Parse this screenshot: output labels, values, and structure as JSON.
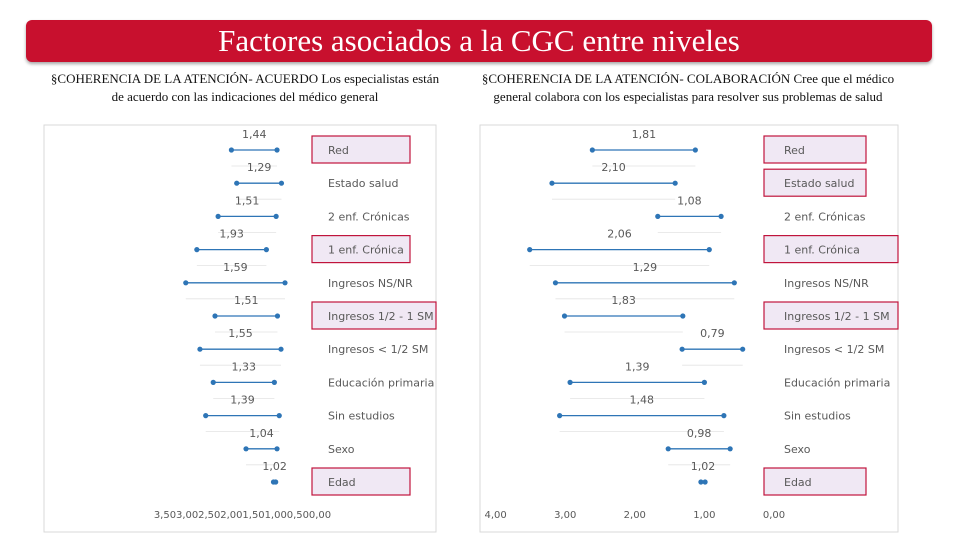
{
  "title": "Factores asociados a la CGC entre niveles",
  "left_header": "§COHERENCIA DE LA ATENCIÓN- ACUERDO Los especialistas están de acuerdo con las indicaciones del médico general",
  "right_header": "§COHERENCIA DE LA ATENCIÓN- COLABORACIÓN Cree que el médico general colabora con los especialistas para resolver sus problemas de salud",
  "colors": {
    "title_bg": "#c8102e",
    "line": "#2e75b6",
    "highlight_border": "#c0143c",
    "highlight_fill": "#f0e8f4",
    "label": "#595959"
  },
  "chart_data": [
    {
      "type": "dumbbell",
      "xlim": [
        0,
        3.5
      ],
      "x_reversed": true,
      "x_ticks": [
        "3,50",
        "3,00",
        "2,50",
        "2,00",
        "1,50",
        "1,00",
        "0,50",
        "0,00"
      ],
      "categories": [
        "Red",
        "Estado salud",
        "2 enf. Crónicas",
        "1 enf. Crónica",
        "Ingresos NS/NR",
        "Ingresos 1/2 - 1 SM",
        "Ingresos < 1/2 SM",
        "Educación primaria",
        "Sin estudios",
        "Sexo",
        "Edad"
      ],
      "highlighted": [
        true,
        false,
        false,
        true,
        false,
        true,
        false,
        false,
        false,
        false,
        true
      ],
      "labels": [
        "1,44",
        "1,29",
        "1,51",
        "1,93",
        "1,59",
        "1,51",
        "1,55",
        "1,33",
        "1,39",
        "1,04",
        "1,02"
      ],
      "low": [
        0.97,
        0.87,
        0.99,
        1.21,
        0.79,
        0.96,
        0.88,
        1.03,
        0.92,
        0.97,
        1.0
      ],
      "high": [
        2.0,
        1.88,
        2.3,
        2.78,
        3.03,
        2.37,
        2.71,
        2.41,
        2.58,
        1.67,
        1.05
      ]
    },
    {
      "type": "dumbbell",
      "xlim": [
        0,
        4.0
      ],
      "x_reversed": true,
      "x_ticks": [
        "4,00",
        "3,00",
        "2,00",
        "1,00",
        "0,00"
      ],
      "categories": [
        "Red",
        "Estado salud",
        "2 enf. Crónicas",
        "1 enf. Crónica",
        "Ingresos NS/NR",
        "Ingresos 1/2 - 1 SM",
        "Ingresos < 1/2 SM",
        "Educación primaria",
        "Sin estudios",
        "Sexo",
        "Edad"
      ],
      "highlighted": [
        true,
        true,
        false,
        true,
        false,
        true,
        false,
        false,
        false,
        false,
        true
      ],
      "labels": [
        "1,81",
        "2,10",
        "1,08",
        "2,06",
        "1,29",
        "1,83",
        "0,79",
        "1,39",
        "1,48",
        "0,98",
        "1,02"
      ],
      "low": [
        1.13,
        1.42,
        0.76,
        0.93,
        0.57,
        1.31,
        0.45,
        1.0,
        0.72,
        0.63,
        0.99
      ],
      "high": [
        2.61,
        3.19,
        1.67,
        3.51,
        3.14,
        3.01,
        1.32,
        2.93,
        3.08,
        1.52,
        1.05
      ]
    }
  ]
}
